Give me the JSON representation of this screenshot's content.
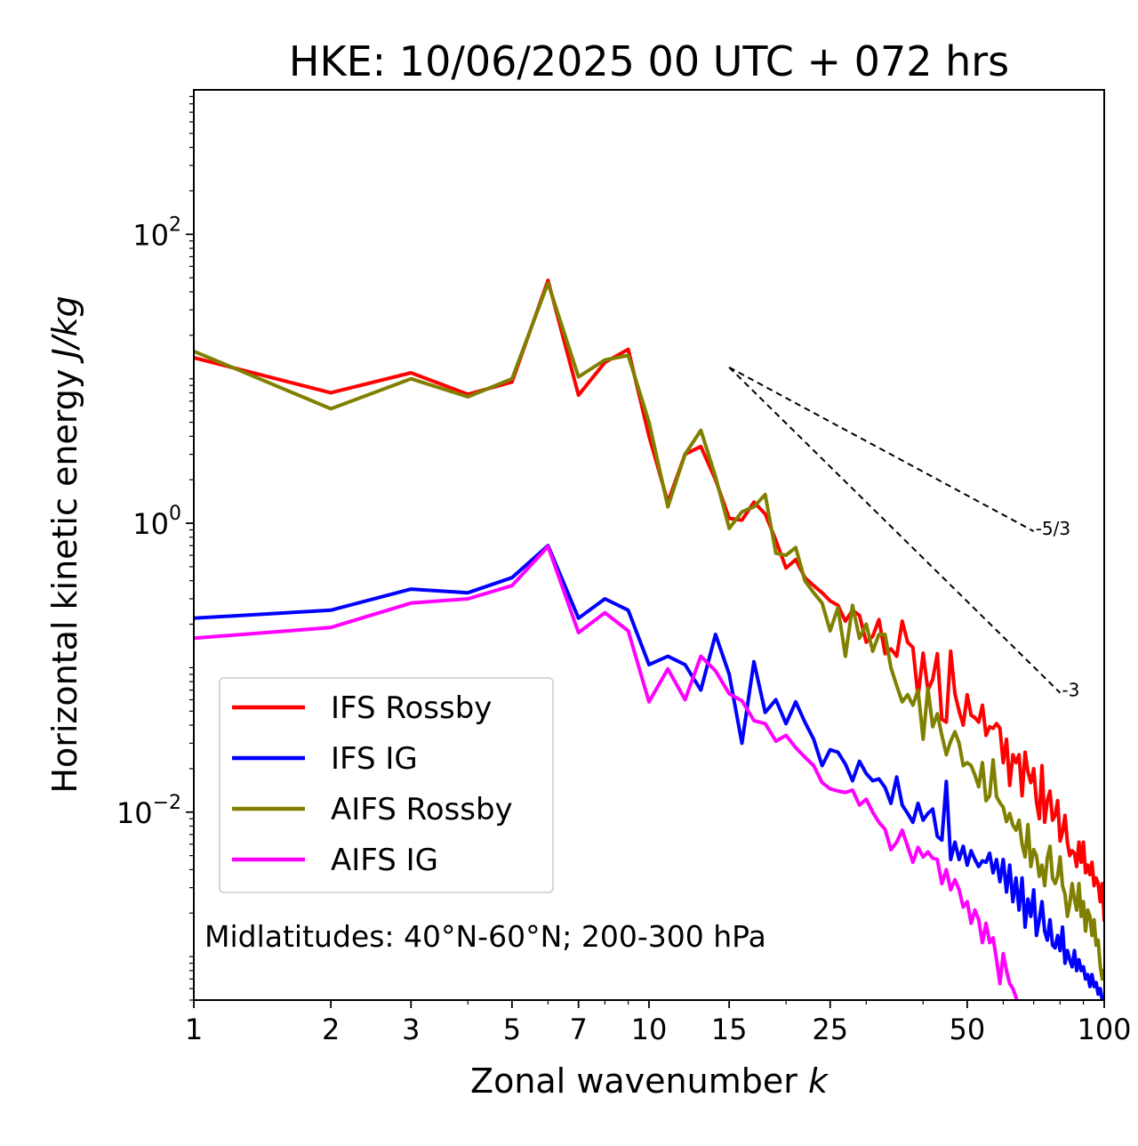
{
  "chart_data": {
    "type": "line",
    "title": "HKE: 10/06/2025 00 UTC + 072 hrs",
    "xlabel_text": "Zonal wavenumber ",
    "xlabel_math": "k",
    "ylabel_text": "Horizontal kinetic energy ",
    "ylabel_math": "J/kg",
    "x_scale": "log",
    "y_scale": "log",
    "xlim": [
      1,
      100
    ],
    "ylim": [
      0.0005,
      1000
    ],
    "x_ticks": [
      {
        "v": 1,
        "label": "1"
      },
      {
        "v": 2,
        "label": "2"
      },
      {
        "v": 3,
        "label": "3"
      },
      {
        "v": 5,
        "label": "5"
      },
      {
        "v": 7,
        "label": "7"
      },
      {
        "v": 10,
        "label": "10"
      },
      {
        "v": 15,
        "label": "15"
      },
      {
        "v": 25,
        "label": "25"
      },
      {
        "v": 50,
        "label": "50"
      },
      {
        "v": 100,
        "label": "100"
      }
    ],
    "y_ticks": [
      {
        "v": 100,
        "base": "10",
        "exp": "2"
      },
      {
        "v": 1,
        "base": "10",
        "exp": "0"
      },
      {
        "v": 0.01,
        "base": "10",
        "exp": "−2"
      }
    ],
    "annotation": "Midlatitudes: 40°N-60°N; 200-300 hPa",
    "legend_position": "lower-left",
    "reference_lines": [
      {
        "label": "-5/3",
        "x": [
          15,
          70
        ],
        "y": [
          12.0,
          0.88
        ]
      },
      {
        "label": "-3",
        "x": [
          15,
          80
        ],
        "y": [
          12.0,
          0.067
        ]
      }
    ],
    "series": [
      {
        "name": "IFS Rossby",
        "color": "#ff0000",
        "x": [
          1,
          2,
          3,
          4,
          5,
          6,
          7,
          8,
          9,
          10,
          11,
          12,
          13,
          14,
          15,
          16,
          17,
          18,
          19,
          20,
          21,
          22,
          23,
          24,
          25,
          26,
          27,
          28,
          29,
          30,
          31,
          32,
          33,
          34,
          35,
          36,
          37,
          38,
          39,
          40,
          41,
          42,
          43,
          44,
          45,
          46,
          47,
          48,
          49,
          50,
          51,
          52,
          53,
          54,
          55,
          56,
          57,
          58,
          59,
          60,
          61,
          62,
          63,
          64,
          65,
          66,
          67,
          68,
          69,
          70,
          71,
          72,
          73,
          74,
          75,
          76,
          77,
          78,
          79,
          80,
          81,
          82,
          83,
          84,
          85,
          86,
          87,
          88,
          89,
          90,
          91,
          92,
          93,
          94,
          95,
          96,
          97,
          98,
          99,
          100
        ],
        "y": [
          14.0,
          8.0,
          11.0,
          7.8,
          9.5,
          48,
          7.7,
          13,
          16,
          4.0,
          1.4,
          3.0,
          3.4,
          2.0,
          1.08,
          1.05,
          1.4,
          1.16,
          0.76,
          0.49,
          0.56,
          0.42,
          0.37,
          0.33,
          0.29,
          0.27,
          0.21,
          0.25,
          0.23,
          0.15,
          0.165,
          0.215,
          0.125,
          0.135,
          0.12,
          0.21,
          0.15,
          0.138,
          0.063,
          0.126,
          0.07,
          0.083,
          0.125,
          0.044,
          0.042,
          0.13,
          0.066,
          0.05,
          0.04,
          0.065,
          0.047,
          0.045,
          0.042,
          0.055,
          0.034,
          0.039,
          0.038,
          0.041,
          0.038,
          0.022,
          0.032,
          0.0153,
          0.025,
          0.022,
          0.025,
          0.013,
          0.026,
          0.019,
          0.016,
          0.02,
          0.0118,
          0.009,
          0.021,
          0.0085,
          0.012,
          0.014,
          0.0088,
          0.0095,
          0.012,
          0.0063,
          0.0073,
          0.0095,
          0.0062,
          0.005,
          0.0054,
          0.0052,
          0.0042,
          0.0062,
          0.0045,
          0.0062,
          0.0038,
          0.0043,
          0.0037,
          0.0045,
          0.0031,
          0.0035,
          0.0032,
          0.0024,
          0.0032,
          0.0018
        ]
      },
      {
        "name": "IFS IG",
        "color": "#0000ff",
        "x": [
          1,
          2,
          3,
          4,
          5,
          6,
          7,
          8,
          9,
          10,
          11,
          12,
          13,
          14,
          15,
          16,
          17,
          18,
          19,
          20,
          21,
          22,
          23,
          24,
          25,
          26,
          27,
          28,
          29,
          30,
          31,
          32,
          33,
          34,
          35,
          36,
          37,
          38,
          39,
          40,
          41,
          42,
          43,
          44,
          45,
          46,
          47,
          48,
          49,
          50,
          51,
          52,
          53,
          54,
          55,
          56,
          57,
          58,
          59,
          60,
          61,
          62,
          63,
          64,
          65,
          66,
          67,
          68,
          69,
          70,
          71,
          72,
          73,
          74,
          75,
          76,
          77,
          78,
          79,
          80,
          81,
          82,
          83,
          84,
          85,
          86,
          87,
          88,
          89,
          90,
          91,
          92,
          93,
          94,
          95,
          96,
          97,
          98,
          99,
          100
        ],
        "y": [
          0.22,
          0.25,
          0.35,
          0.33,
          0.42,
          0.7,
          0.22,
          0.3,
          0.25,
          0.105,
          0.12,
          0.105,
          0.07,
          0.17,
          0.09,
          0.03,
          0.11,
          0.049,
          0.06,
          0.041,
          0.058,
          0.042,
          0.032,
          0.021,
          0.027,
          0.026,
          0.0215,
          0.0165,
          0.0225,
          0.0185,
          0.0165,
          0.017,
          0.0148,
          0.0115,
          0.0175,
          0.0112,
          0.0098,
          0.0085,
          0.0115,
          0.0088,
          0.0098,
          0.0105,
          0.0068,
          0.0064,
          0.0163,
          0.0047,
          0.0062,
          0.0047,
          0.0058,
          0.0043,
          0.0054,
          0.0047,
          0.0042,
          0.0046,
          0.0045,
          0.0052,
          0.0038,
          0.0047,
          0.0033,
          0.0047,
          0.0028,
          0.0043,
          0.0024,
          0.0035,
          0.0021,
          0.0035,
          0.0016,
          0.0025,
          0.0019,
          0.0029,
          0.0014,
          0.0018,
          0.0024,
          0.0015,
          0.0013,
          0.0018,
          0.0012,
          0.00115,
          0.0014,
          0.0011,
          0.0016,
          0.0009,
          0.0011,
          0.00095,
          0.00085,
          0.0011,
          0.0008,
          0.00095,
          0.0008,
          0.00085,
          0.0007,
          0.00075,
          0.00062,
          0.00075,
          0.00062,
          0.00066,
          0.00055,
          0.0006,
          0.0005,
          0.00045
        ]
      },
      {
        "name": "AIFS Rossby",
        "color": "#808000",
        "x": [
          1,
          2,
          3,
          4,
          5,
          6,
          7,
          8,
          9,
          10,
          11,
          12,
          13,
          14,
          15,
          16,
          17,
          18,
          19,
          20,
          21,
          22,
          23,
          24,
          25,
          26,
          27,
          28,
          29,
          30,
          31,
          32,
          33,
          34,
          35,
          36,
          37,
          38,
          39,
          40,
          41,
          42,
          43,
          44,
          45,
          46,
          47,
          48,
          49,
          50,
          51,
          52,
          53,
          54,
          55,
          56,
          57,
          58,
          59,
          60,
          61,
          62,
          63,
          64,
          65,
          66,
          67,
          68,
          69,
          70,
          71,
          72,
          73,
          74,
          75,
          76,
          77,
          78,
          79,
          80,
          81,
          82,
          83,
          84,
          85,
          86,
          87,
          88,
          89,
          90,
          91,
          92,
          93,
          94,
          95,
          96,
          97,
          98,
          99,
          100
        ],
        "y": [
          15.5,
          6.2,
          10.0,
          7.5,
          10.0,
          46,
          10.3,
          13.5,
          14.5,
          5.0,
          1.3,
          3.0,
          4.4,
          2.1,
          0.92,
          1.2,
          1.3,
          1.58,
          0.62,
          0.6,
          0.68,
          0.4,
          0.33,
          0.28,
          0.18,
          0.26,
          0.12,
          0.27,
          0.16,
          0.2,
          0.13,
          0.17,
          0.17,
          0.1,
          0.075,
          0.058,
          0.065,
          0.055,
          0.07,
          0.032,
          0.072,
          0.039,
          0.048,
          0.034,
          0.025,
          0.031,
          0.036,
          0.03,
          0.021,
          0.022,
          0.021,
          0.018,
          0.015,
          0.022,
          0.012,
          0.013,
          0.023,
          0.0128,
          0.0116,
          0.0108,
          0.0086,
          0.0098,
          0.0081,
          0.0075,
          0.0088,
          0.006,
          0.0049,
          0.0082,
          0.0042,
          0.0055,
          0.005,
          0.0036,
          0.0043,
          0.0031,
          0.0048,
          0.0058,
          0.0035,
          0.0032,
          0.0036,
          0.0049,
          0.0031,
          0.0027,
          0.0019,
          0.0023,
          0.0032,
          0.0025,
          0.0021,
          0.0032,
          0.0019,
          0.0024,
          0.0015,
          0.0021,
          0.0019,
          0.0014,
          0.0018,
          0.0012,
          0.0013,
          0.00086,
          0.0007,
          0.0008
        ]
      },
      {
        "name": "AIFS IG",
        "color": "#ff00ff",
        "x": [
          1,
          2,
          3,
          4,
          5,
          6,
          7,
          8,
          9,
          10,
          11,
          12,
          13,
          14,
          15,
          16,
          17,
          18,
          19,
          20,
          21,
          22,
          23,
          24,
          25,
          26,
          27,
          28,
          29,
          30,
          31,
          32,
          33,
          34,
          35,
          36,
          37,
          38,
          39,
          40,
          41,
          42,
          43,
          44,
          45,
          46,
          47,
          48,
          49,
          50,
          51,
          52,
          53,
          54,
          55,
          56,
          57,
          58,
          59,
          60,
          61,
          62,
          63,
          64,
          65
        ],
        "y": [
          0.16,
          0.19,
          0.28,
          0.3,
          0.37,
          0.69,
          0.175,
          0.24,
          0.18,
          0.058,
          0.098,
          0.06,
          0.12,
          0.095,
          0.066,
          0.059,
          0.043,
          0.041,
          0.031,
          0.034,
          0.028,
          0.024,
          0.021,
          0.016,
          0.0145,
          0.014,
          0.0137,
          0.0142,
          0.0112,
          0.0123,
          0.01,
          0.0085,
          0.0076,
          0.0055,
          0.0062,
          0.0075,
          0.0058,
          0.0045,
          0.0057,
          0.0049,
          0.0053,
          0.0048,
          0.0047,
          0.0032,
          0.004,
          0.0029,
          0.0034,
          0.0029,
          0.0022,
          0.0024,
          0.0017,
          0.0021,
          0.0018,
          0.00125,
          0.0017,
          0.00125,
          0.00135,
          0.00095,
          0.00065,
          0.00105,
          0.0008,
          0.00065,
          0.0006,
          0.00052,
          0.00045
        ]
      }
    ]
  }
}
